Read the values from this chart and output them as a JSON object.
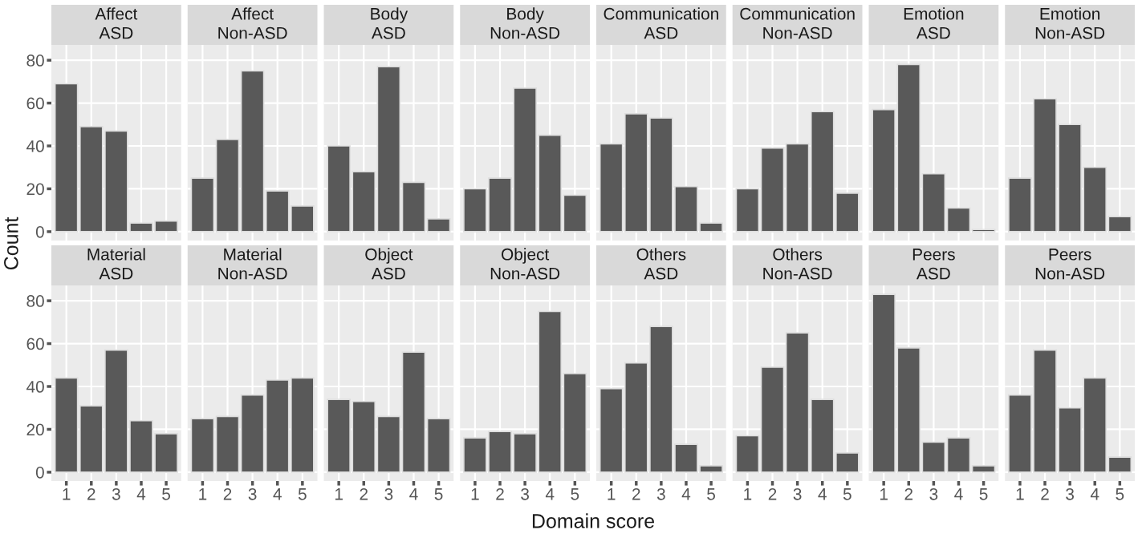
{
  "chart_data": [
    {
      "type": "bar",
      "title": "Affect\nASD",
      "ylabel": "Count",
      "categories": [
        "1",
        "2",
        "3",
        "4",
        "5"
      ],
      "values": [
        69,
        49,
        47,
        4,
        5
      ],
      "color": "#595959",
      "ylim": [
        -4.15,
        87.15
      ],
      "yticks": [
        0,
        20,
        40,
        60,
        80
      ],
      "grid": true,
      "tick_labels": "y"
    },
    {
      "type": "bar",
      "title": "Affect\nNon-ASD",
      "categories": [
        "1",
        "2",
        "3",
        "4",
        "5"
      ],
      "values": [
        25,
        43,
        75,
        19,
        12
      ],
      "color": "#595959",
      "ylim": [
        -4.15,
        87.15
      ],
      "yticks": [
        0,
        20,
        40,
        60,
        80
      ],
      "grid": true,
      "tick_labels": false
    },
    {
      "type": "bar",
      "title": "Body\nASD",
      "categories": [
        "1",
        "2",
        "3",
        "4",
        "5"
      ],
      "values": [
        40,
        28,
        77,
        23,
        6
      ],
      "color": "#595959",
      "ylim": [
        -4.15,
        87.15
      ],
      "yticks": [
        0,
        20,
        40,
        60,
        80
      ],
      "grid": true,
      "tick_labels": false
    },
    {
      "type": "bar",
      "title": "Body\nNon-ASD",
      "categories": [
        "1",
        "2",
        "3",
        "4",
        "5"
      ],
      "values": [
        20,
        25,
        67,
        45,
        17
      ],
      "color": "#595959",
      "ylim": [
        -4.15,
        87.15
      ],
      "yticks": [
        0,
        20,
        40,
        60,
        80
      ],
      "grid": true,
      "tick_labels": false
    },
    {
      "type": "bar",
      "title": "Communication\nASD",
      "categories": [
        "1",
        "2",
        "3",
        "4",
        "5"
      ],
      "values": [
        41,
        55,
        53,
        21,
        4
      ],
      "color": "#595959",
      "ylim": [
        -4.15,
        87.15
      ],
      "yticks": [
        0,
        20,
        40,
        60,
        80
      ],
      "grid": true,
      "tick_labels": false
    },
    {
      "type": "bar",
      "title": "Communication\nNon-ASD",
      "categories": [
        "1",
        "2",
        "3",
        "4",
        "5"
      ],
      "values": [
        20,
        39,
        41,
        56,
        18
      ],
      "color": "#595959",
      "ylim": [
        -4.15,
        87.15
      ],
      "yticks": [
        0,
        20,
        40,
        60,
        80
      ],
      "grid": true,
      "tick_labels": false
    },
    {
      "type": "bar",
      "title": "Emotion\nASD",
      "categories": [
        "1",
        "2",
        "3",
        "4",
        "5"
      ],
      "values": [
        57,
        78,
        27,
        11,
        1
      ],
      "color": "#595959",
      "ylim": [
        -4.15,
        87.15
      ],
      "yticks": [
        0,
        20,
        40,
        60,
        80
      ],
      "grid": true,
      "tick_labels": false
    },
    {
      "type": "bar",
      "title": "Emotion\nNon-ASD",
      "categories": [
        "1",
        "2",
        "3",
        "4",
        "5"
      ],
      "values": [
        25,
        62,
        50,
        30,
        7
      ],
      "color": "#595959",
      "ylim": [
        -4.15,
        87.15
      ],
      "yticks": [
        0,
        20,
        40,
        60,
        80
      ],
      "grid": true,
      "tick_labels": false
    },
    {
      "type": "bar",
      "title": "Material\nASD",
      "categories": [
        "1",
        "2",
        "3",
        "4",
        "5"
      ],
      "values": [
        44,
        31,
        57,
        24,
        18
      ],
      "color": "#595959",
      "ylim": [
        -4.15,
        87.15
      ],
      "yticks": [
        0,
        20,
        40,
        60,
        80
      ],
      "grid": true
    },
    {
      "type": "bar",
      "title": "Material\nNon-ASD",
      "categories": [
        "1",
        "2",
        "3",
        "4",
        "5"
      ],
      "values": [
        25,
        26,
        36,
        43,
        44
      ],
      "color": "#595959",
      "ylim": [
        -4.15,
        87.15
      ],
      "yticks": [
        0,
        20,
        40,
        60,
        80
      ],
      "grid": true,
      "tick_labels": "x"
    },
    {
      "type": "bar",
      "title": "Object\nASD",
      "categories": [
        "1",
        "2",
        "3",
        "4",
        "5"
      ],
      "values": [
        34,
        33,
        26,
        56,
        25
      ],
      "color": "#595959",
      "ylim": [
        -4.15,
        87.15
      ],
      "yticks": [
        0,
        20,
        40,
        60,
        80
      ],
      "grid": true,
      "tick_labels": "x"
    },
    {
      "type": "bar",
      "title": "Object\nNon-ASD",
      "xlabel": "Domain score",
      "categories": [
        "1",
        "2",
        "3",
        "4",
        "5"
      ],
      "values": [
        16,
        19,
        18,
        75,
        46
      ],
      "color": "#595959",
      "ylim": [
        -4.15,
        87.15
      ],
      "yticks": [
        0,
        20,
        40,
        60,
        80
      ],
      "grid": true,
      "tick_labels": "x"
    },
    {
      "type": "bar",
      "title": "Others\nASD",
      "categories": [
        "1",
        "2",
        "3",
        "4",
        "5"
      ],
      "values": [
        39,
        51,
        68,
        13,
        3
      ],
      "color": "#595959",
      "ylim": [
        -4.15,
        87.15
      ],
      "yticks": [
        0,
        20,
        40,
        60,
        80
      ],
      "grid": true,
      "tick_labels": "x"
    },
    {
      "type": "bar",
      "title": "Others\nNon-ASD",
      "categories": [
        "1",
        "2",
        "3",
        "4",
        "5"
      ],
      "values": [
        17,
        49,
        65,
        34,
        9
      ],
      "color": "#595959",
      "ylim": [
        -4.15,
        87.15
      ],
      "yticks": [
        0,
        20,
        40,
        60,
        80
      ],
      "grid": true,
      "tick_labels": "x"
    },
    {
      "type": "bar",
      "title": "Peers\nASD",
      "categories": [
        "1",
        "2",
        "3",
        "4",
        "5"
      ],
      "values": [
        83,
        58,
        14,
        16,
        3
      ],
      "color": "#595959",
      "ylim": [
        -4.15,
        87.15
      ],
      "yticks": [
        0,
        20,
        40,
        60,
        80
      ],
      "grid": true,
      "tick_labels": "x"
    },
    {
      "type": "bar",
      "title": "Peers\nNon-ASD",
      "categories": [
        "1",
        "2",
        "3",
        "4",
        "5"
      ],
      "values": [
        36,
        57,
        30,
        44,
        7
      ],
      "color": "#595959",
      "ylim": [
        -4.15,
        87.15
      ],
      "yticks": [
        0,
        20,
        40,
        60,
        80
      ],
      "grid": true,
      "tick_labels": "x"
    }
  ]
}
